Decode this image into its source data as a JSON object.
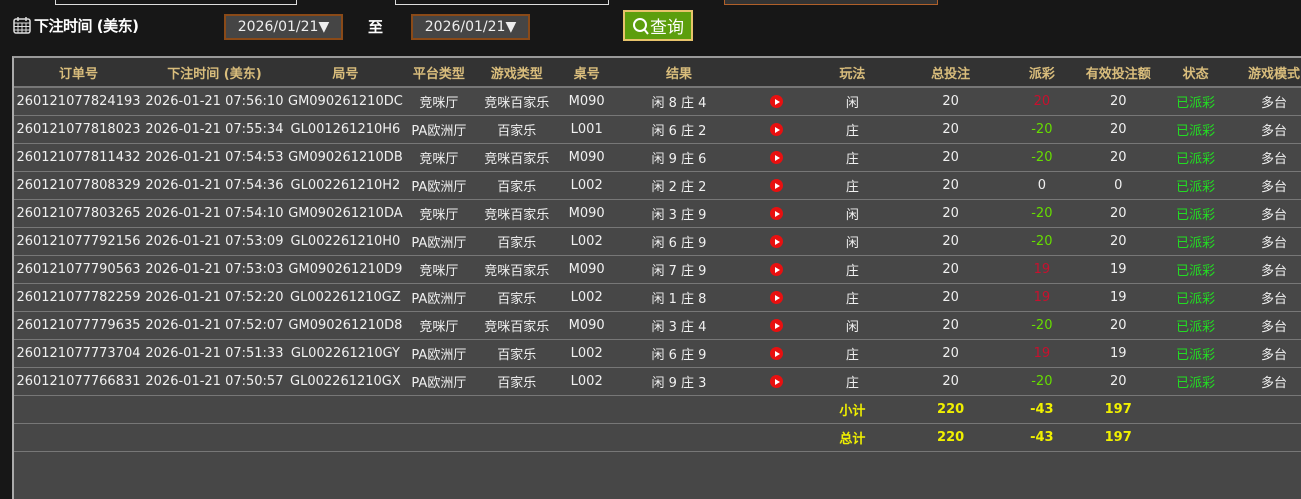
{
  "filter": {
    "label": "下注时间 (美东)",
    "from": "2026/01/21▼",
    "to_label": "至",
    "to": "2026/01/21▼",
    "query": "查询"
  },
  "columns": [
    "订单号",
    "下注时间 (美东)",
    "局号",
    "平台类型",
    "游戏类型",
    "桌号",
    "结果",
    "",
    "玩法",
    "总投注",
    "派彩",
    "有效投注额",
    "状态",
    "游戏模式"
  ],
  "colors": {
    "win": "#c8102e",
    "loss": "#66dd00",
    "status": "#22dd22",
    "total": "#f0f000",
    "header": "#d9bd7c"
  },
  "rows": [
    [
      "260121077824193",
      "2026-01-21 07:56:10",
      "GM090261210DC",
      "竞咪厅",
      "竞咪百家乐",
      "M090",
      "闲 8 庄 4",
      "闲",
      "20",
      "20",
      "20",
      "已派彩",
      "多台"
    ],
    [
      "260121077818023",
      "2026-01-21 07:55:34",
      "GL001261210H6",
      "PA欧洲厅",
      "百家乐",
      "L001",
      "闲 6 庄 2",
      "庄",
      "20",
      "-20",
      "20",
      "已派彩",
      "多台"
    ],
    [
      "260121077811432",
      "2026-01-21 07:54:53",
      "GM090261210DB",
      "竞咪厅",
      "竞咪百家乐",
      "M090",
      "闲 9 庄 6",
      "庄",
      "20",
      "-20",
      "20",
      "已派彩",
      "多台"
    ],
    [
      "260121077808329",
      "2026-01-21 07:54:36",
      "GL002261210H2",
      "PA欧洲厅",
      "百家乐",
      "L002",
      "闲 2 庄 2",
      "庄",
      "20",
      "0",
      "0",
      "已派彩",
      "多台"
    ],
    [
      "260121077803265",
      "2026-01-21 07:54:10",
      "GM090261210DA",
      "竞咪厅",
      "竞咪百家乐",
      "M090",
      "闲 3 庄 9",
      "闲",
      "20",
      "-20",
      "20",
      "已派彩",
      "多台"
    ],
    [
      "260121077792156",
      "2026-01-21 07:53:09",
      "GL002261210H0",
      "PA欧洲厅",
      "百家乐",
      "L002",
      "闲 6 庄 9",
      "闲",
      "20",
      "-20",
      "20",
      "已派彩",
      "多台"
    ],
    [
      "260121077790563",
      "2026-01-21 07:53:03",
      "GM090261210D9",
      "竞咪厅",
      "竞咪百家乐",
      "M090",
      "闲 7 庄 9",
      "庄",
      "20",
      "19",
      "19",
      "已派彩",
      "多台"
    ],
    [
      "260121077782259",
      "2026-01-21 07:52:20",
      "GL002261210GZ",
      "PA欧洲厅",
      "百家乐",
      "L002",
      "闲 1 庄 8",
      "庄",
      "20",
      "19",
      "19",
      "已派彩",
      "多台"
    ],
    [
      "260121077779635",
      "2026-01-21 07:52:07",
      "GM090261210D8",
      "竞咪厅",
      "竞咪百家乐",
      "M090",
      "闲 3 庄 4",
      "闲",
      "20",
      "-20",
      "20",
      "已派彩",
      "多台"
    ],
    [
      "260121077773704",
      "2026-01-21 07:51:33",
      "GL002261210GY",
      "PA欧洲厅",
      "百家乐",
      "L002",
      "闲 6 庄 9",
      "庄",
      "20",
      "19",
      "19",
      "已派彩",
      "多台"
    ],
    [
      "260121077766831",
      "2026-01-21 07:50:57",
      "GL002261210GX",
      "PA欧洲厅",
      "百家乐",
      "L002",
      "闲 9 庄 3",
      "庄",
      "20",
      "-20",
      "20",
      "已派彩",
      "多台"
    ]
  ],
  "subtotal": {
    "label": "小计",
    "total_bet": "220",
    "payout": "-43",
    "valid_bet": "197"
  },
  "total": {
    "label": "总计",
    "total_bet": "220",
    "payout": "-43",
    "valid_bet": "197"
  }
}
